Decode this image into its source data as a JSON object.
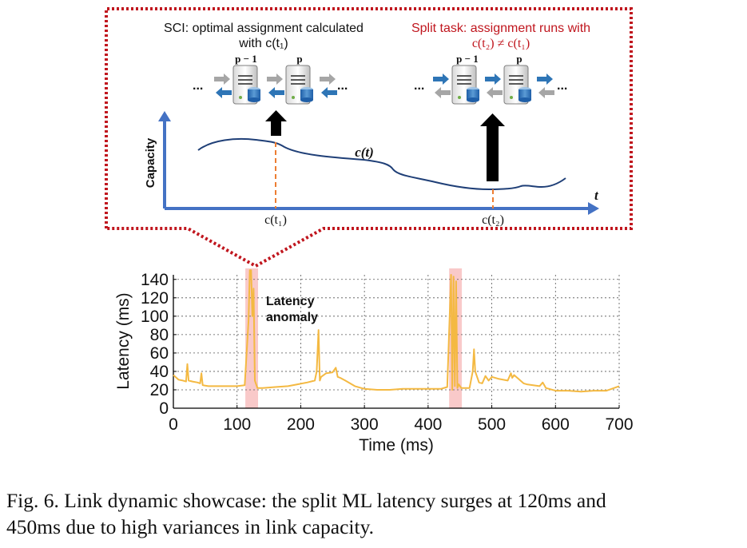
{
  "inset": {
    "left_title_line1": "SCI: optimal assignment calculated",
    "left_title_line2": "with c(t₁)",
    "right_title_line1": "Split task: assignment runs with",
    "right_title_line2": "c(t₂) ≠ c(t₁)",
    "node_prev": "p − 1",
    "node_cur": "p",
    "ellipsis": "...",
    "curve_label": "c(t)",
    "ylabel": "Capacity",
    "xlabel": "t",
    "t1_label": "c(t₁)",
    "t2_label": "c(t₂)",
    "colors": {
      "frame": "#c0161e",
      "right_title": "#c0161e",
      "curve": "#1f3f77",
      "axis": "#4472c4",
      "marker": "#ed7d31",
      "arrow_blue": "#2e75b6",
      "arrow_gray": "#a6a6a6"
    }
  },
  "annotation": {
    "line1": "Latency",
    "line2": "anomaly"
  },
  "chart_data": {
    "type": "line",
    "xlabel": "Time (ms)",
    "ylabel": "Latency (ms)",
    "xlim": [
      0,
      700
    ],
    "ylim": [
      0,
      145
    ],
    "xticks": [
      0,
      100,
      200,
      300,
      400,
      500,
      600,
      700
    ],
    "yticks": [
      0,
      20,
      40,
      60,
      80,
      100,
      120,
      140
    ],
    "grid": true,
    "line_color": "#f4b942",
    "highlight_color": "#f9c9c9",
    "highlight_ranges": [
      [
        113,
        133
      ],
      [
        433,
        453
      ]
    ],
    "x": [
      0,
      8,
      15,
      20,
      22,
      24,
      30,
      38,
      42,
      44,
      46,
      55,
      70,
      85,
      100,
      112,
      118,
      120,
      122,
      124,
      126,
      128,
      132,
      140,
      160,
      180,
      195,
      210,
      222,
      225,
      228,
      230,
      232,
      240,
      250,
      255,
      258,
      262,
      270,
      285,
      300,
      320,
      340,
      360,
      380,
      400,
      420,
      430,
      436,
      438,
      440,
      442,
      444,
      446,
      448,
      452,
      460,
      465,
      470,
      472,
      474,
      480,
      485,
      490,
      495,
      500,
      510,
      525,
      530,
      532,
      535,
      545,
      550,
      555,
      565,
      575,
      580,
      585,
      590,
      600,
      620,
      640,
      660,
      680,
      700
    ],
    "y": [
      36,
      31,
      30,
      29,
      48,
      30,
      29,
      28,
      27,
      38,
      25,
      24,
      24,
      24,
      24,
      25,
      95,
      150,
      150,
      100,
      130,
      30,
      22,
      22,
      23,
      24,
      26,
      28,
      30,
      40,
      85,
      30,
      34,
      38,
      39,
      44,
      34,
      33,
      30,
      24,
      21,
      20,
      20,
      21,
      21,
      21,
      21,
      23,
      145,
      20,
      143,
      24,
      138,
      22,
      26,
      22,
      22,
      22,
      40,
      64,
      40,
      28,
      27,
      35,
      30,
      34,
      32,
      30,
      38,
      33,
      36,
      30,
      27,
      26,
      25,
      24,
      28,
      22,
      21,
      19,
      19,
      18,
      19,
      19,
      24
    ]
  },
  "caption": {
    "line1": "Fig. 6.  Link dynamic showcase: the split ML latency surges at 120ms and",
    "line2": "450ms due to high variances in link capacity."
  }
}
